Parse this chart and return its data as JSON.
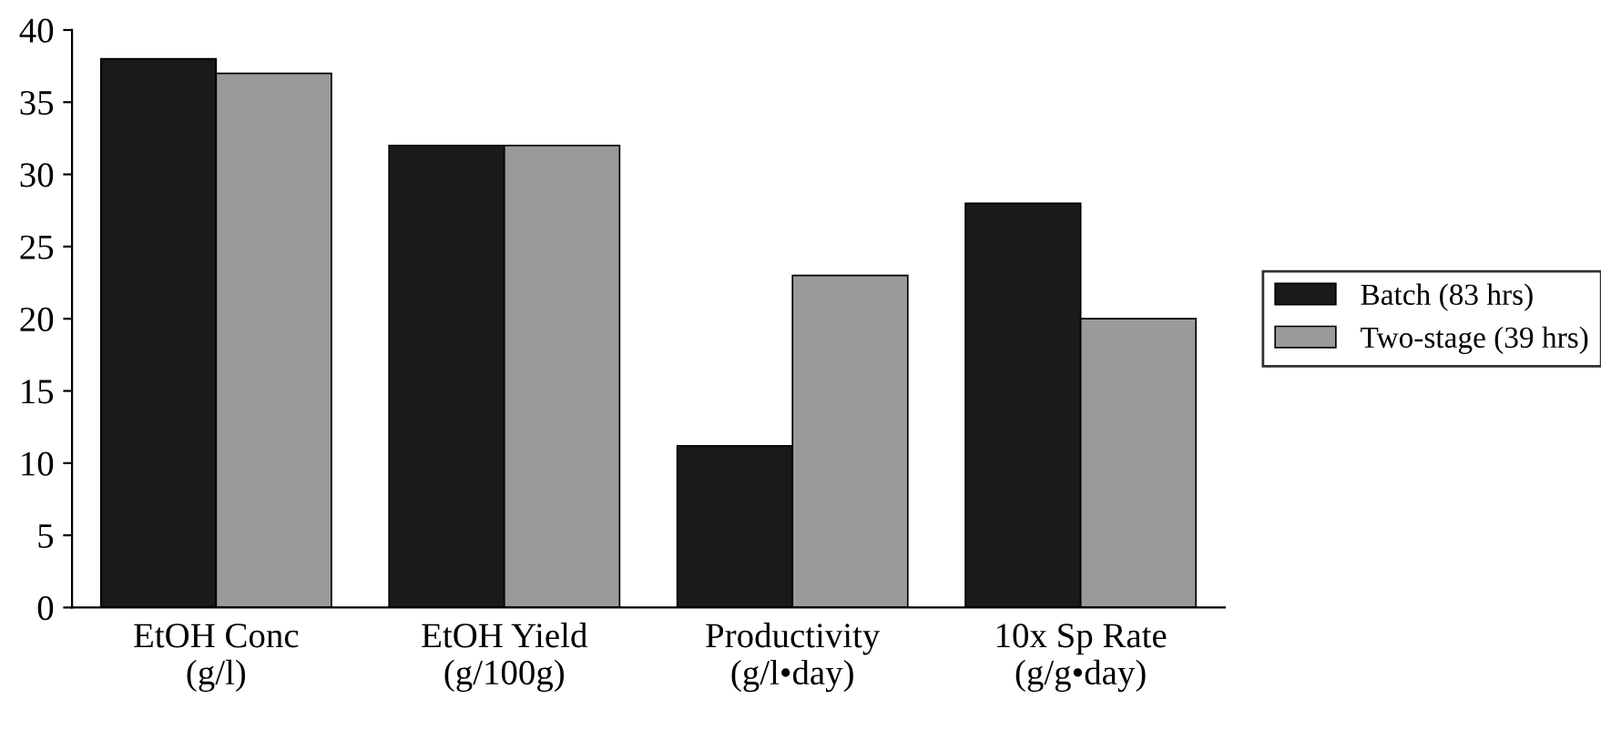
{
  "chart_data": {
    "type": "bar",
    "categories": [
      "EtOH Conc\n(g/l)",
      "EtOH Yield\n(g/100g)",
      "Productivity\n(g/l•day)",
      "10x Sp Rate\n(g/g•day)"
    ],
    "series": [
      {
        "name": "Batch (83 hrs)",
        "color": "#1a1a1a",
        "values": [
          38,
          32,
          11.2,
          28
        ]
      },
      {
        "name": "Two-stage (39 hrs)",
        "color": "#9a9a9a",
        "values": [
          37,
          32,
          23,
          20
        ]
      }
    ],
    "ylim": [
      0,
      40
    ],
    "yticks": [
      0,
      5,
      10,
      15,
      20,
      25,
      30,
      35,
      40
    ],
    "grid": false,
    "legend": "right"
  }
}
